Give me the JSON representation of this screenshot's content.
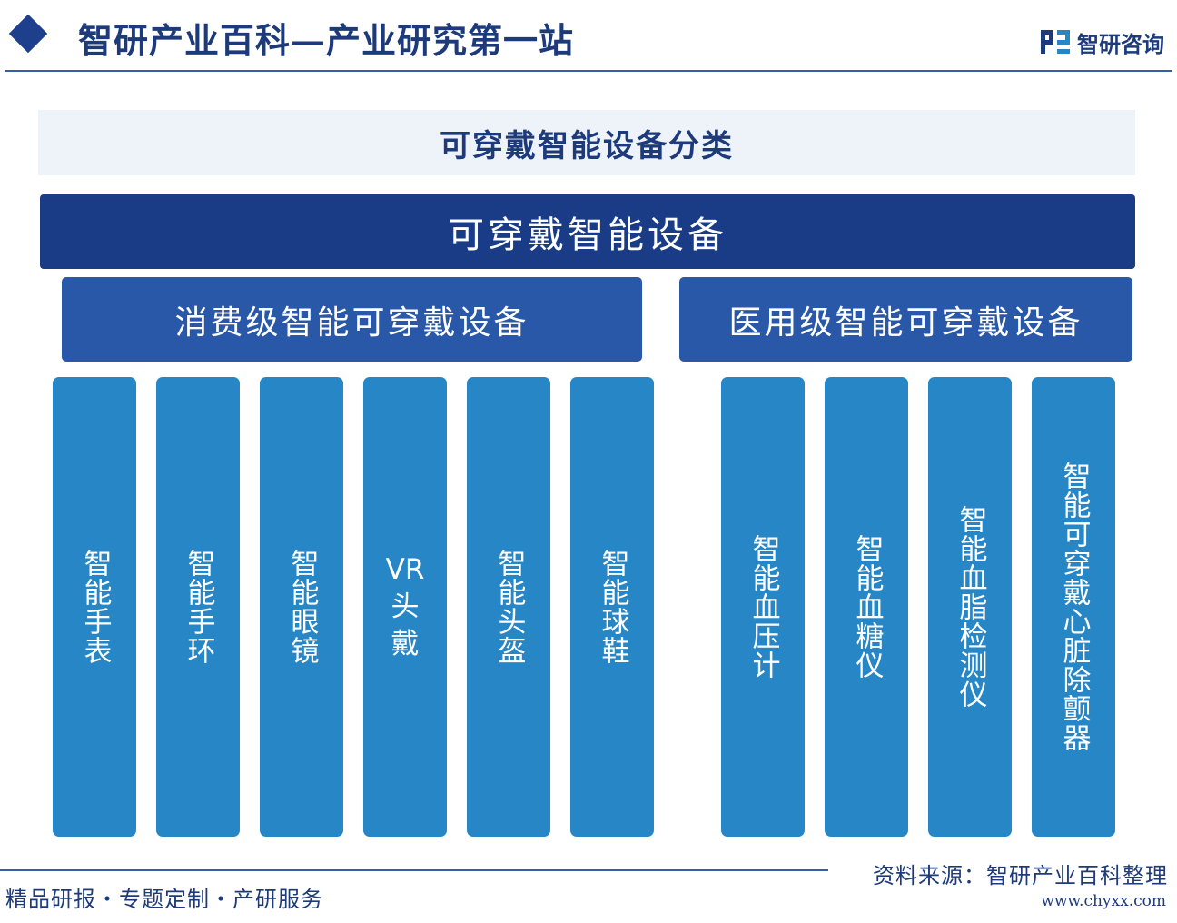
{
  "header": {
    "site_title": "智研产业百科—产业研究第一站",
    "logo_text": "智研咨询"
  },
  "diagram": {
    "title": "可穿戴智能设备分类",
    "root": "可穿戴智能设备",
    "categories": [
      {
        "label": "消费级智能可穿戴设备",
        "items": [
          "智能手表",
          "智能手环",
          "智能眼镜",
          "VR头戴",
          "智能头盔",
          "智能球鞋"
        ]
      },
      {
        "label": "医用级智能可穿戴设备",
        "items": [
          "智能血压计",
          "智能血糖仪",
          "智能血脂检测仪",
          "智能可穿戴心脏除颤器"
        ]
      }
    ]
  },
  "footer": {
    "tagline": "精品研报・专题定制・产研服务",
    "source": "资料来源：智研产业百科整理",
    "url": "www.chyxx.com"
  },
  "colors": {
    "root": "#1a3b86",
    "category": "#2a58a8",
    "item": "#2686c6",
    "title_band": "#eef2f9",
    "text_dark": "#1d3a7a"
  }
}
